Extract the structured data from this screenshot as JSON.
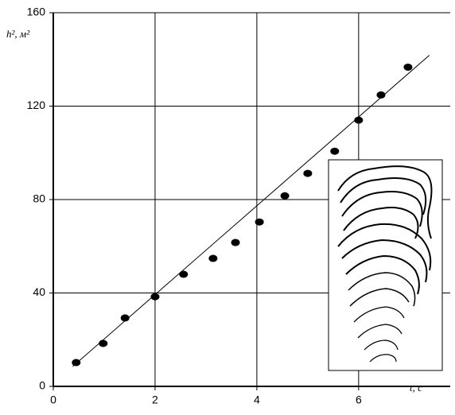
{
  "chart_data": {
    "type": "scatter",
    "x_label": "t, с",
    "y_label": "h², м²",
    "x": [
      0.45,
      0.98,
      1.41,
      2.0,
      2.56,
      3.14,
      3.58,
      4.05,
      4.55,
      5.0,
      5.53,
      6.0,
      6.44,
      6.97
    ],
    "values": [
      10.2,
      18.4,
      29.3,
      38.4,
      48,
      54.8,
      61.6,
      70.4,
      81.6,
      91.2,
      100.7,
      114,
      124.8,
      136.7
    ],
    "color": "#000000",
    "fit_line": {
      "x": [
        0.38,
        7.39
      ],
      "values": [
        8.5,
        141.8
      ]
    },
    "xlim": [
      0,
      7.8
    ],
    "ylim": [
      0,
      160
    ],
    "xticks": [
      0,
      2,
      4,
      6
    ],
    "yticks": [
      0,
      40,
      80,
      120,
      160
    ],
    "grid": true
  }
}
